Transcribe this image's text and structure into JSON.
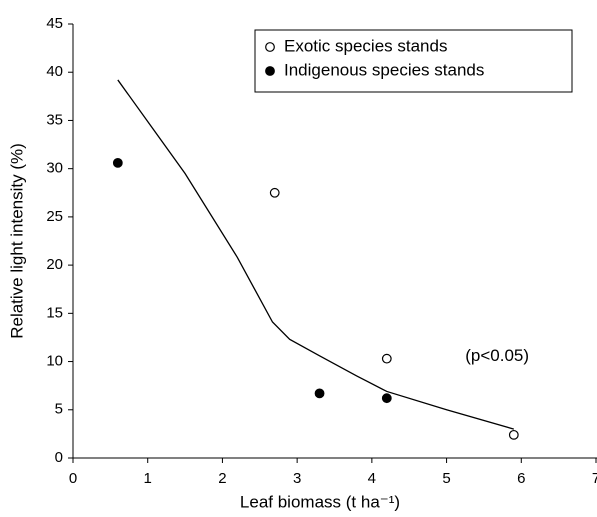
{
  "chart_data": {
    "type": "scatter",
    "xlabel": "Leaf biomass (t ha⁻¹)",
    "ylabel": "Relative light intensity (%)",
    "annotation": {
      "text": "(p<0.05)",
      "x": 5.25,
      "y": 10.5
    },
    "xlim": [
      0,
      7
    ],
    "xticks": [
      0,
      1,
      2,
      3,
      4,
      5,
      6,
      7
    ],
    "ylim": [
      0,
      45
    ],
    "yticks": [
      0,
      5,
      10,
      15,
      20,
      25,
      30,
      35,
      40,
      45
    ],
    "grid": false,
    "legend": "upper right",
    "series": [
      {
        "name": "Exotic species stands",
        "color": "#000",
        "marker": "open",
        "x": [
          2.7,
          4.2,
          5.9
        ],
        "values": [
          27.5,
          10.3,
          2.4
        ]
      },
      {
        "name": "Indigenous species stands",
        "color": "#000",
        "marker": "filled",
        "x": [
          0.6,
          3.3,
          4.2
        ],
        "values": [
          30.6,
          6.7,
          6.2
        ]
      }
    ],
    "fit_line": {
      "color": "#000",
      "x": [
        0.6,
        1.5,
        2.2,
        2.67,
        2.9,
        3.3,
        3.8,
        4.2,
        5.0,
        5.9
      ],
      "values": [
        39.2,
        29.5,
        20.8,
        14.1,
        12.3,
        10.6,
        8.5,
        6.9,
        5.0,
        3.0
      ]
    }
  }
}
